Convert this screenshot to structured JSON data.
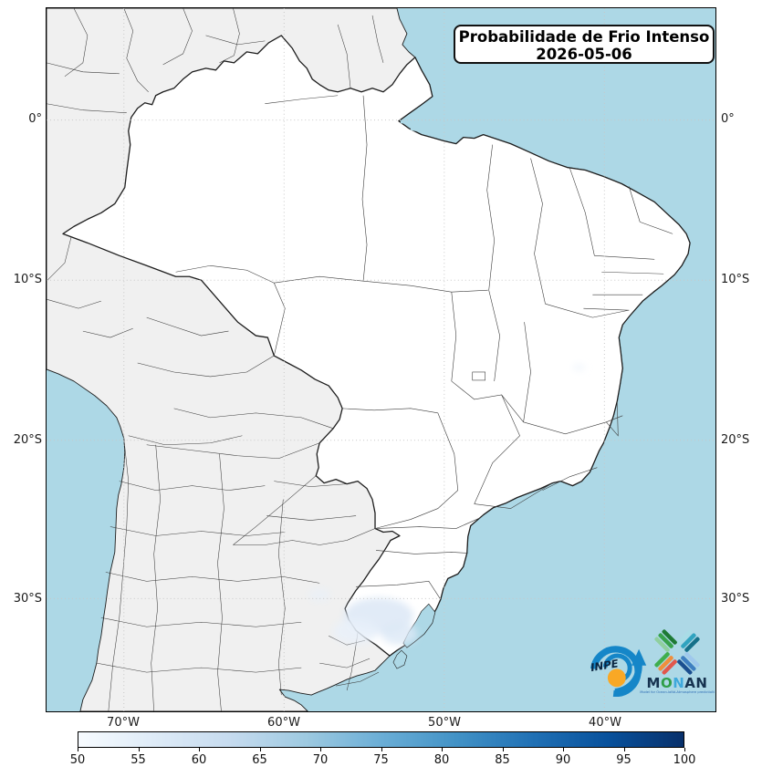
{
  "title": {
    "line1": "Probabilidade de Frio Intenso",
    "line2": "2026-05-06"
  },
  "axes": {
    "lat_left": [
      "0°",
      "10°S",
      "20°S",
      "30°S"
    ],
    "lat_right": [
      "0°",
      "10°S",
      "20°S",
      "30°S"
    ],
    "lon": [
      "70°W",
      "60°W",
      "50°W",
      "40°W"
    ]
  },
  "colorbar": {
    "min": 50,
    "max": 100,
    "ticks": [
      50,
      55,
      60,
      65,
      70,
      75,
      80,
      85,
      90,
      95,
      100
    ],
    "stops": [
      "#f7fbff",
      "#deebf7",
      "#c6dbef",
      "#9ecae1",
      "#6baed6",
      "#4292c6",
      "#2171b5",
      "#08519c",
      "#08306b"
    ]
  },
  "logos": {
    "inpe": {
      "label": "INPE"
    },
    "monan": {
      "letters": [
        {
          "ch": "M",
          "color": "#16324f"
        },
        {
          "ch": "O",
          "color": "#2f9e49"
        },
        {
          "ch": "N",
          "color": "#3fa9dc"
        },
        {
          "ch": "A",
          "color": "#16324f"
        },
        {
          "ch": "N",
          "color": "#16324f"
        }
      ],
      "tagline": "Model for Ocean-laNd-Atmosphere predictioN"
    }
  },
  "colors": {
    "ocean": "#ADD8E6",
    "land_other": "#f0f0f0",
    "land_brazil": "#ffffff",
    "border_country": "#1d1d1d",
    "border_admin": "#3c3c3c",
    "grid": "#c8c8c8",
    "prob_patch_light": "#e8f0fa",
    "prob_patch_mid": "#dce8f6",
    "inpe_blue": "#1586c8",
    "inpe_orange": "#f9a825"
  }
}
